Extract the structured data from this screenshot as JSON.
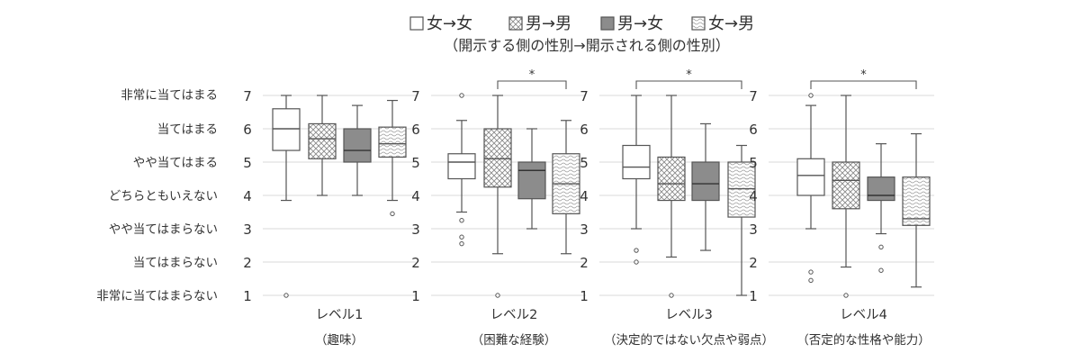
{
  "chart_data": {
    "type": "boxplot",
    "legend": {
      "entries": [
        "女→女",
        "男→男",
        "男→女",
        "女→男"
      ],
      "subtitle": "（開示する側の性別→開示される側の性別）"
    },
    "y_category_labels": [
      "非常に当てはまらない",
      "当てはまらない",
      "やや当てはまらない",
      "どちらともいえない",
      "やや当てはまる",
      "当てはまる",
      "非常に当てはまる"
    ],
    "ylim": [
      1,
      7
    ],
    "y_ticks": [
      "1",
      "2",
      "3",
      "4",
      "5",
      "6",
      "7"
    ],
    "grid": true,
    "series": [
      {
        "fill": "white"
      },
      {
        "fill": "crosshatch"
      },
      {
        "fill": "gray"
      },
      {
        "fill": "wave"
      }
    ],
    "panels": [
      {
        "title": "レベル1",
        "subtitle": "（趣味）",
        "significance": null,
        "boxes": [
          {
            "min": 3.85,
            "q1": 5.35,
            "median": 6.0,
            "q3": 6.6,
            "max": 7.0,
            "outliers": [
              1.0
            ]
          },
          {
            "min": 4.0,
            "q1": 5.1,
            "median": 5.7,
            "q3": 6.15,
            "max": 7.0,
            "outliers": []
          },
          {
            "min": 4.0,
            "q1": 5.0,
            "median": 5.35,
            "q3": 6.0,
            "max": 6.7,
            "outliers": []
          },
          {
            "min": 3.85,
            "q1": 5.15,
            "median": 5.55,
            "q3": 6.05,
            "max": 6.85,
            "outliers": [
              3.45
            ]
          }
        ]
      },
      {
        "title": "レベル2",
        "subtitle": "（困難な経験）",
        "significance": {
          "from": 1,
          "to": 3,
          "label": "*"
        },
        "boxes": [
          {
            "min": 3.5,
            "q1": 4.5,
            "median": 5.0,
            "q3": 5.25,
            "max": 6.25,
            "outliers": [
              7.0,
              3.25,
              2.75,
              2.55
            ]
          },
          {
            "min": 2.25,
            "q1": 4.25,
            "median": 5.1,
            "q3": 6.0,
            "max": 7.0,
            "outliers": [
              1.0
            ]
          },
          {
            "min": 3.0,
            "q1": 3.9,
            "median": 4.75,
            "q3": 5.0,
            "max": 6.0,
            "outliers": []
          },
          {
            "min": 2.25,
            "q1": 3.45,
            "median": 4.35,
            "q3": 5.25,
            "max": 6.25,
            "outliers": []
          }
        ]
      },
      {
        "title": "レベル3",
        "subtitle": "（決定的ではない欠点や弱点）",
        "significance": {
          "from": 0,
          "to": 3,
          "label": "*"
        },
        "boxes": [
          {
            "min": 3.0,
            "q1": 4.5,
            "median": 4.85,
            "q3": 5.5,
            "max": 7.0,
            "outliers": [
              2.35,
              2.0
            ]
          },
          {
            "min": 2.15,
            "q1": 3.85,
            "median": 4.35,
            "q3": 5.15,
            "max": 7.0,
            "outliers": [
              1.0
            ]
          },
          {
            "min": 2.35,
            "q1": 3.85,
            "median": 4.35,
            "q3": 5.0,
            "max": 6.15,
            "outliers": []
          },
          {
            "min": 1.0,
            "q1": 3.35,
            "median": 4.2,
            "q3": 5.0,
            "max": 5.5,
            "outliers": []
          }
        ]
      },
      {
        "title": "レベル4",
        "subtitle": "（否定的な性格や能力）",
        "significance": {
          "from": 0,
          "to": 3,
          "label": "*"
        },
        "boxes": [
          {
            "min": 3.0,
            "q1": 4.0,
            "median": 4.6,
            "q3": 5.1,
            "max": 6.7,
            "outliers": [
              7.0,
              1.7,
              1.45
            ]
          },
          {
            "min": 1.85,
            "q1": 3.6,
            "median": 4.45,
            "q3": 5.0,
            "max": 7.0,
            "outliers": [
              1.0
            ]
          },
          {
            "min": 2.85,
            "q1": 3.85,
            "median": 4.0,
            "q3": 4.55,
            "max": 5.55,
            "outliers": [
              2.45,
              1.75
            ]
          },
          {
            "min": 1.25,
            "q1": 3.1,
            "median": 3.3,
            "q3": 4.55,
            "max": 5.85,
            "outliers": []
          }
        ]
      }
    ]
  }
}
